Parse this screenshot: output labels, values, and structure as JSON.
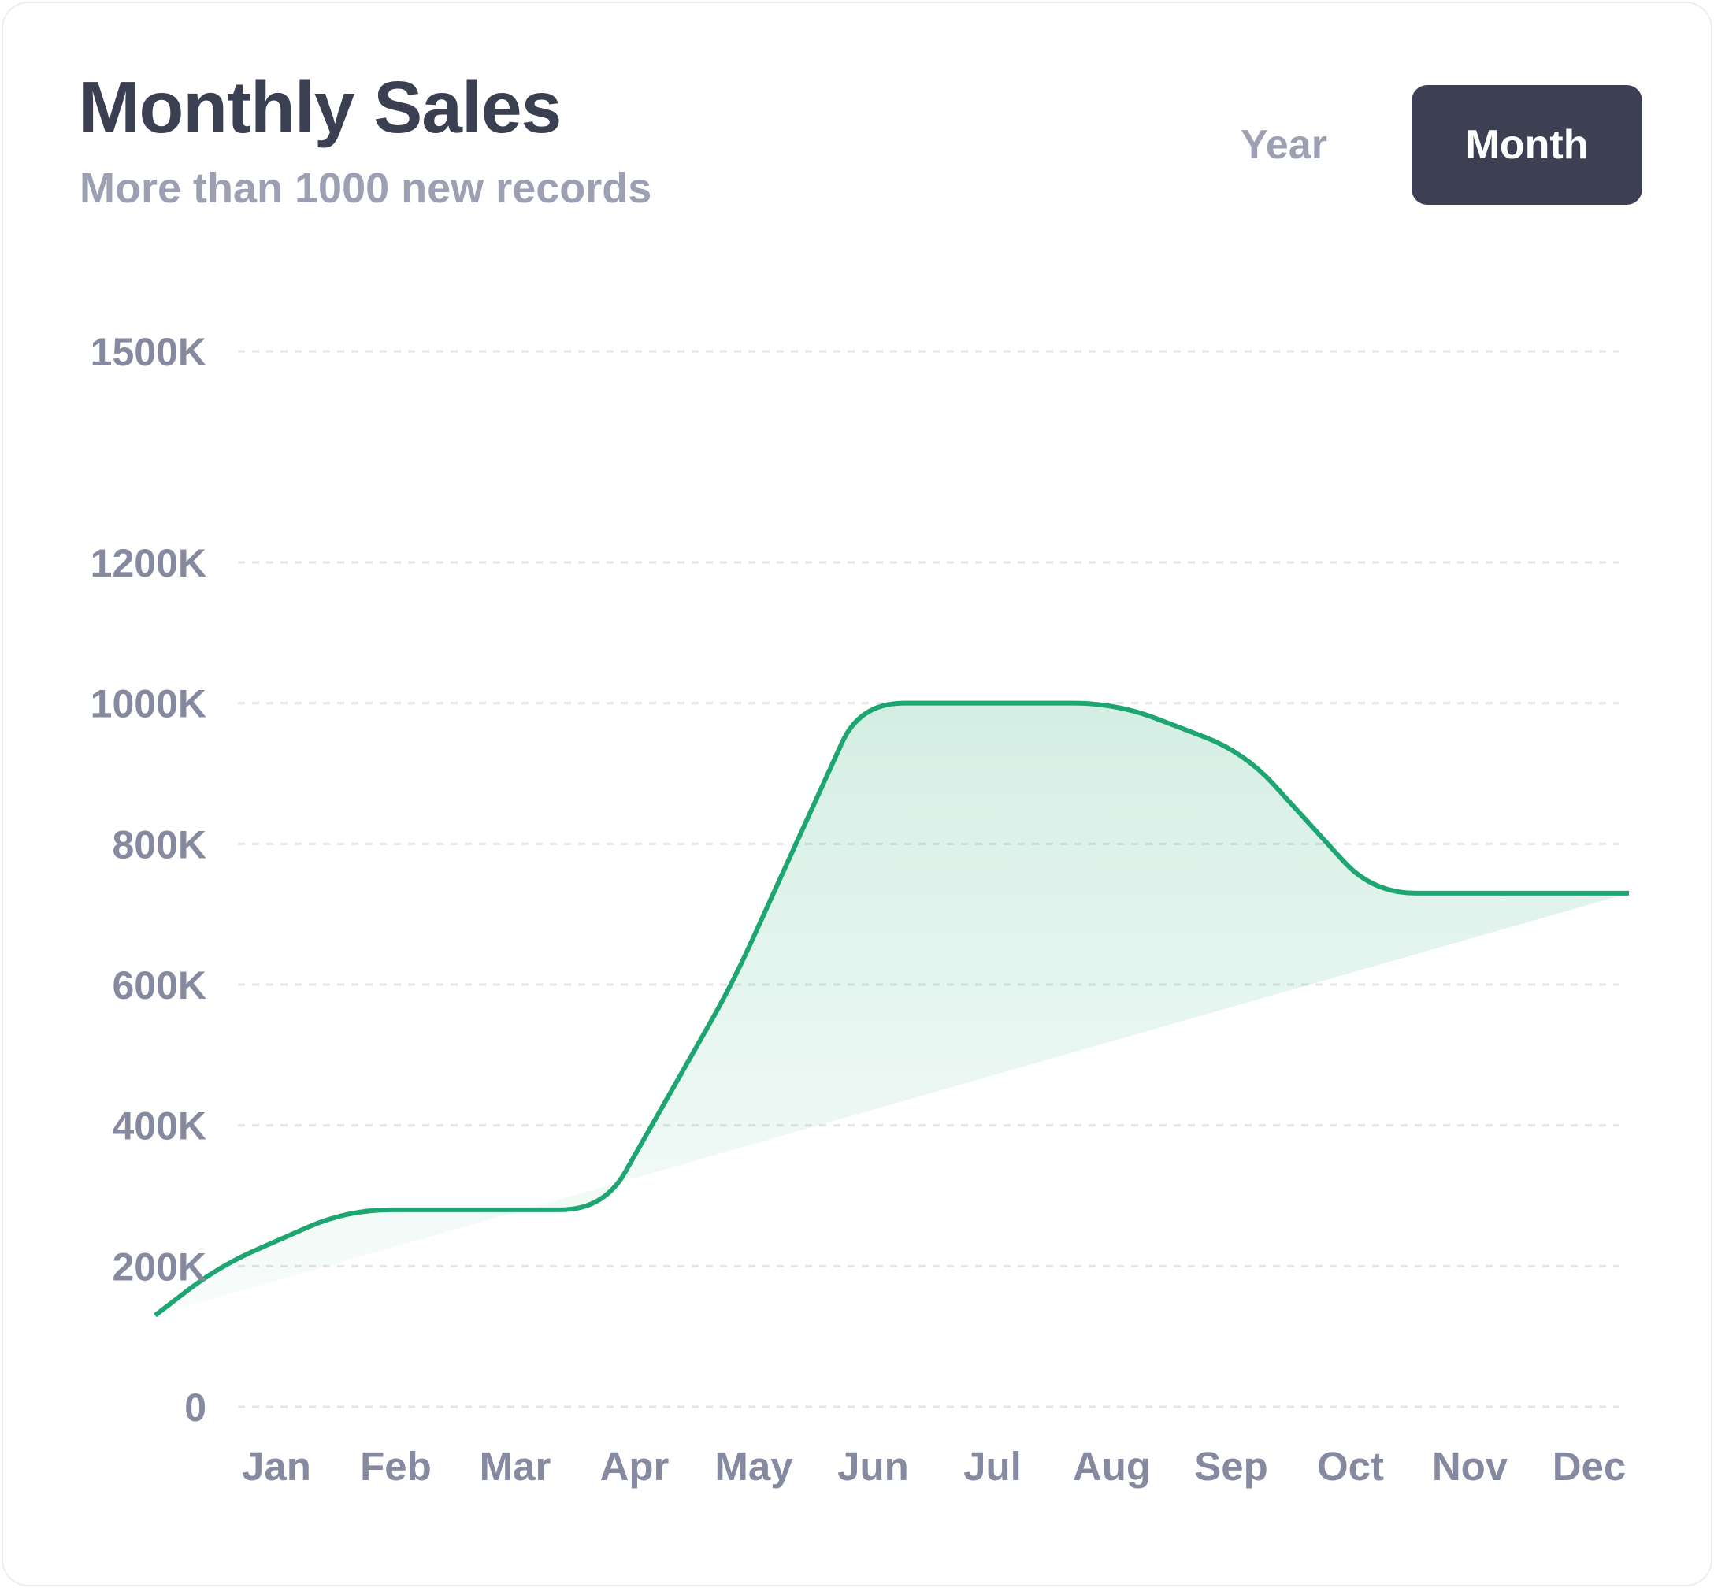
{
  "header": {
    "title": "Monthly Sales",
    "subtitle": "More than 1000 new records"
  },
  "toggle": {
    "options": [
      "Year",
      "Month"
    ],
    "selected": "Month"
  },
  "colors": {
    "line": "#1ea672",
    "area": "#1ea672",
    "grid": "#e3e5ea",
    "toggle_active_bg": "#3d4052"
  },
  "chart_data": {
    "type": "area",
    "x": [
      "Jan",
      "Feb",
      "Mar",
      "Apr",
      "May",
      "Jun",
      "Jul",
      "Aug",
      "Sep",
      "Oct",
      "Nov",
      "Dec"
    ],
    "series": [
      {
        "values": [
          200,
          280,
          280,
          280,
          600,
          1000,
          1000,
          1000,
          930,
          730,
          730,
          730
        ]
      }
    ],
    "start_value": 130,
    "ylim": [
      0,
      1500
    ],
    "yticks": [
      0,
      200,
      400,
      600,
      800,
      1000,
      1200,
      1500
    ],
    "ytick_labels": [
      "0",
      "200K",
      "400K",
      "600K",
      "800K",
      "1000K",
      "1200K",
      "1500K"
    ],
    "grid": true,
    "curve": "smooth"
  }
}
